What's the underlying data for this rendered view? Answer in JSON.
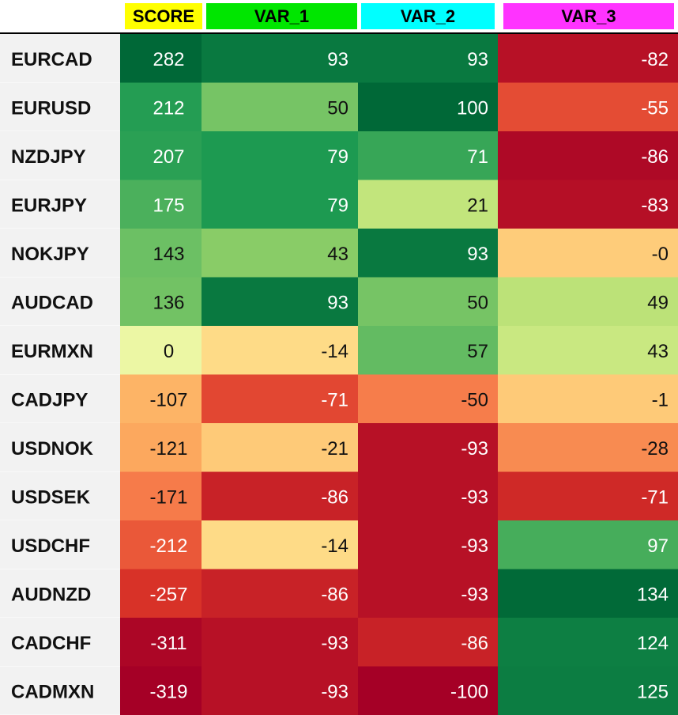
{
  "chart_data": {
    "type": "heatmap",
    "columns": [
      {
        "label": "SCORE",
        "color": "#ffff00"
      },
      {
        "label": "VAR_1",
        "color": "#00e600"
      },
      {
        "label": "VAR_2",
        "color": "#00ffff"
      },
      {
        "label": "VAR_3",
        "color": "#ff33ff"
      }
    ],
    "rows": [
      "EURCAD",
      "EURUSD",
      "NZDJPY",
      "EURJPY",
      "NOKJPY",
      "AUDCAD",
      "EURMXN",
      "CADJPY",
      "USDNOK",
      "USDSEK",
      "USDCHF",
      "AUDNZD",
      "CADCHF",
      "CADMXN"
    ],
    "values": [
      [
        "282",
        "93",
        "93",
        "-82"
      ],
      [
        "212",
        "50",
        "100",
        "-55"
      ],
      [
        "207",
        "79",
        "71",
        "-86"
      ],
      [
        "175",
        "79",
        "21",
        "-83"
      ],
      [
        "143",
        "43",
        "93",
        "-0"
      ],
      [
        "136",
        "93",
        "50",
        "49"
      ],
      [
        "0",
        "-14",
        "57",
        "43"
      ],
      [
        "-107",
        "-71",
        "-50",
        "-1"
      ],
      [
        "-121",
        "-21",
        "-93",
        "-28"
      ],
      [
        "-171",
        "-86",
        "-93",
        "-71"
      ],
      [
        "-212",
        "-14",
        "-93",
        "97"
      ],
      [
        "-257",
        "-86",
        "-93",
        "134"
      ],
      [
        "-311",
        "-93",
        "-86",
        "124"
      ],
      [
        "-319",
        "-93",
        "-100",
        "125"
      ]
    ],
    "column_ranges": [
      [
        -319,
        282
      ],
      [
        -100,
        100
      ],
      [
        -100,
        100
      ],
      [
        -90,
        135
      ]
    ],
    "colormap": "red-yellow-green",
    "header_text_color": "#000000",
    "row_label_background": "#f2f2f2",
    "grid": false,
    "legend": "none"
  }
}
